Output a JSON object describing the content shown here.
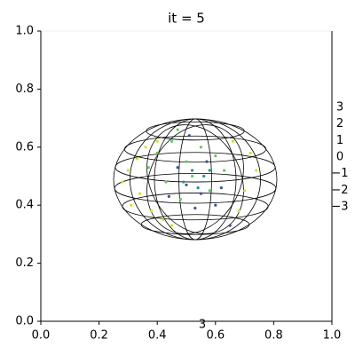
{
  "chart_data": {
    "type": "scatter",
    "title": "it = 5",
    "xlim": [
      0,
      1
    ],
    "ylim": [
      0,
      1
    ],
    "xticks": [
      {
        "value": 0,
        "label": "0.0"
      },
      {
        "value": 0.2,
        "label": "0.2"
      },
      {
        "value": 0.4,
        "label": "0.4"
      },
      {
        "value": 0.6,
        "label": "0.6"
      },
      {
        "value": 0.8,
        "label": "0.8"
      },
      {
        "value": 1,
        "label": "1.0"
      }
    ],
    "yticks": [
      {
        "value": 0,
        "label": "0.0"
      },
      {
        "value": 0.2,
        "label": "0.2"
      },
      {
        "value": 0.4,
        "label": "0.4"
      },
      {
        "value": 0.6,
        "label": "0.6"
      },
      {
        "value": 0.8,
        "label": "0.8"
      },
      {
        "value": 1,
        "label": "1.0"
      }
    ],
    "zticks": [
      3,
      2,
      1,
      0,
      {
        "value": -1,
        "label": "−1"
      },
      {
        "value": -2,
        "label": "−2"
      },
      {
        "value": -3,
        "label": "−3"
      }
    ],
    "annotation": "3",
    "series": [
      {
        "color": "#d5e21a",
        "x": [
          0.3,
          0.34,
          0.38,
          0.28,
          0.36,
          0.42,
          0.33,
          0.7,
          0.74,
          0.68,
          0.72,
          0.4,
          0.31,
          0.66,
          0.45
        ],
        "y": [
          0.52,
          0.44,
          0.38,
          0.48,
          0.6,
          0.35,
          0.56,
          0.45,
          0.52,
          0.38,
          0.58,
          0.62,
          0.4,
          0.62,
          0.33
        ]
      },
      {
        "color": "#5ec962",
        "x": [
          0.4,
          0.45,
          0.5,
          0.55,
          0.6,
          0.43,
          0.58,
          0.48,
          0.52,
          0.63,
          0.37,
          0.47
        ],
        "y": [
          0.58,
          0.62,
          0.55,
          0.6,
          0.57,
          0.48,
          0.45,
          0.42,
          0.5,
          0.52,
          0.53,
          0.66
        ]
      },
      {
        "color": "#3b528b",
        "x": [
          0.5,
          0.55,
          0.47,
          0.6,
          0.53,
          0.57,
          0.62,
          0.44,
          0.65,
          0.51
        ],
        "y": [
          0.47,
          0.44,
          0.53,
          0.4,
          0.39,
          0.55,
          0.46,
          0.43,
          0.33,
          0.64
        ]
      },
      {
        "color": "#21918c",
        "x": [
          0.52,
          0.56,
          0.49,
          0.58,
          0.54
        ],
        "y": [
          0.52,
          0.5,
          0.48,
          0.52,
          0.46
        ]
      }
    ]
  }
}
